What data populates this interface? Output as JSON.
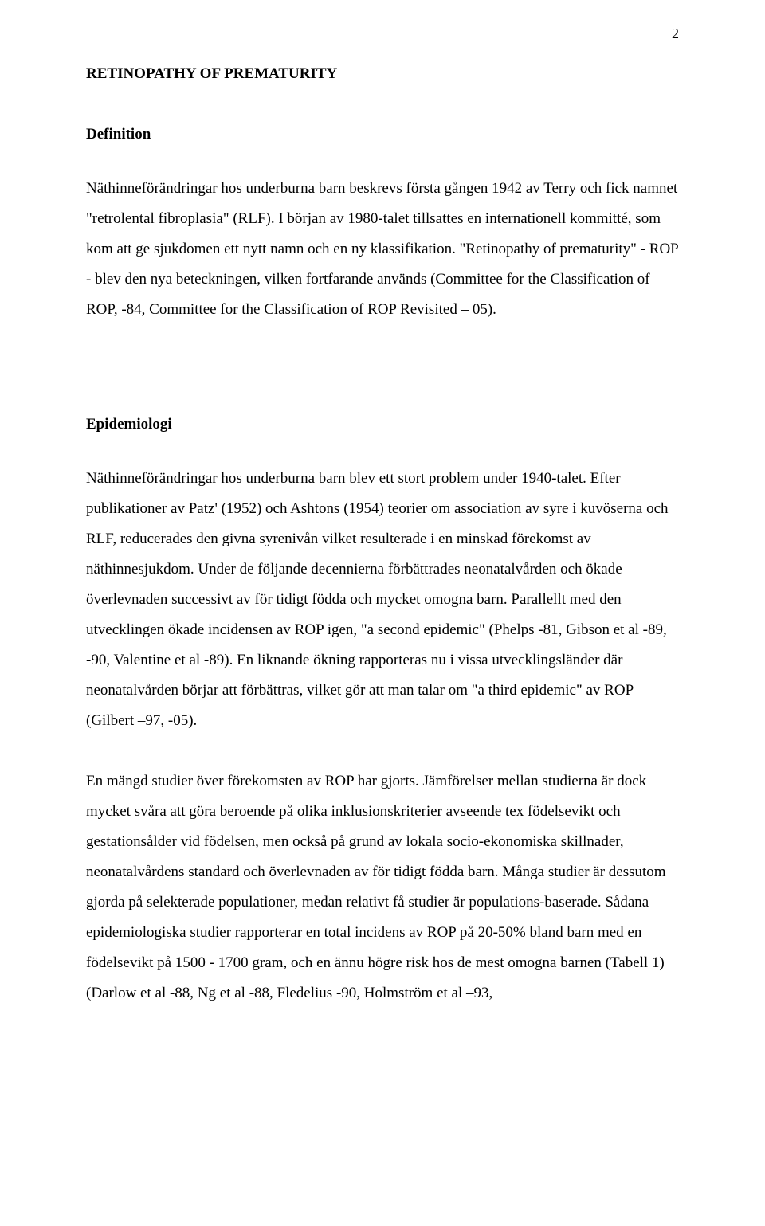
{
  "page_number": "2",
  "title": "RETINOPATHY OF PREMATURITY",
  "section1": {
    "heading": "Definition",
    "para": "Näthinneförändringar hos underburna barn beskrevs första gången 1942 av Terry och fick namnet \"retrolental fibroplasia\" (RLF). I början av 1980-talet tillsattes en internationell kommitté, som kom att ge sjukdomen ett nytt namn och en ny klassifikation. \"Retinopathy of prematurity\" - ROP - blev den nya beteckningen, vilken fortfarande används (Committee for the Classification of ROP, -84, Committee for the Classification of ROP Revisited – 05)."
  },
  "section2": {
    "heading": "Epidemiologi",
    "para1": "Näthinneförändringar hos underburna barn blev ett stort problem under 1940-talet. Efter publikationer av Patz' (1952) och Ashtons (1954) teorier om association av syre i kuvöserna och RLF, reducerades den givna syrenivån vilket resulterade i en minskad förekomst av näthinnesjukdom. Under de följande decennierna förbättrades neonatalvården och ökade överlevnaden successivt av för tidigt födda och mycket omogna barn. Parallellt med den utvecklingen ökade incidensen av ROP igen, \"a second epidemic\" (Phelps -81, Gibson et al -89, -90, Valentine et al -89). En liknande ökning rapporteras nu i vissa utvecklingsländer där neonatalvården börjar att förbättras, vilket gör att man talar om \"a third epidemic\" av ROP (Gilbert –97, -05).",
    "para2": "En mängd studier över förekomsten av ROP har gjorts. Jämförelser mellan studierna är dock mycket svåra att göra beroende på olika inklusionskriterier avseende tex födelsevikt och gestationsålder vid födelsen, men också på grund av lokala socio-ekonomiska skillnader, neonatalvårdens standard och överlevnaden av för tidigt födda barn. Många studier är dessutom gjorda på selekterade populationer, medan relativt få studier är populations-baserade. Sådana epidemiologiska studier rapporterar en total incidens av ROP på 20-50% bland barn med en födelsevikt på 1500 - 1700 gram, och en ännu högre risk hos de mest omogna barnen (Tabell 1) (Darlow et al -88, Ng et al -88, Fledelius -90, Holmström et al –93,"
  }
}
